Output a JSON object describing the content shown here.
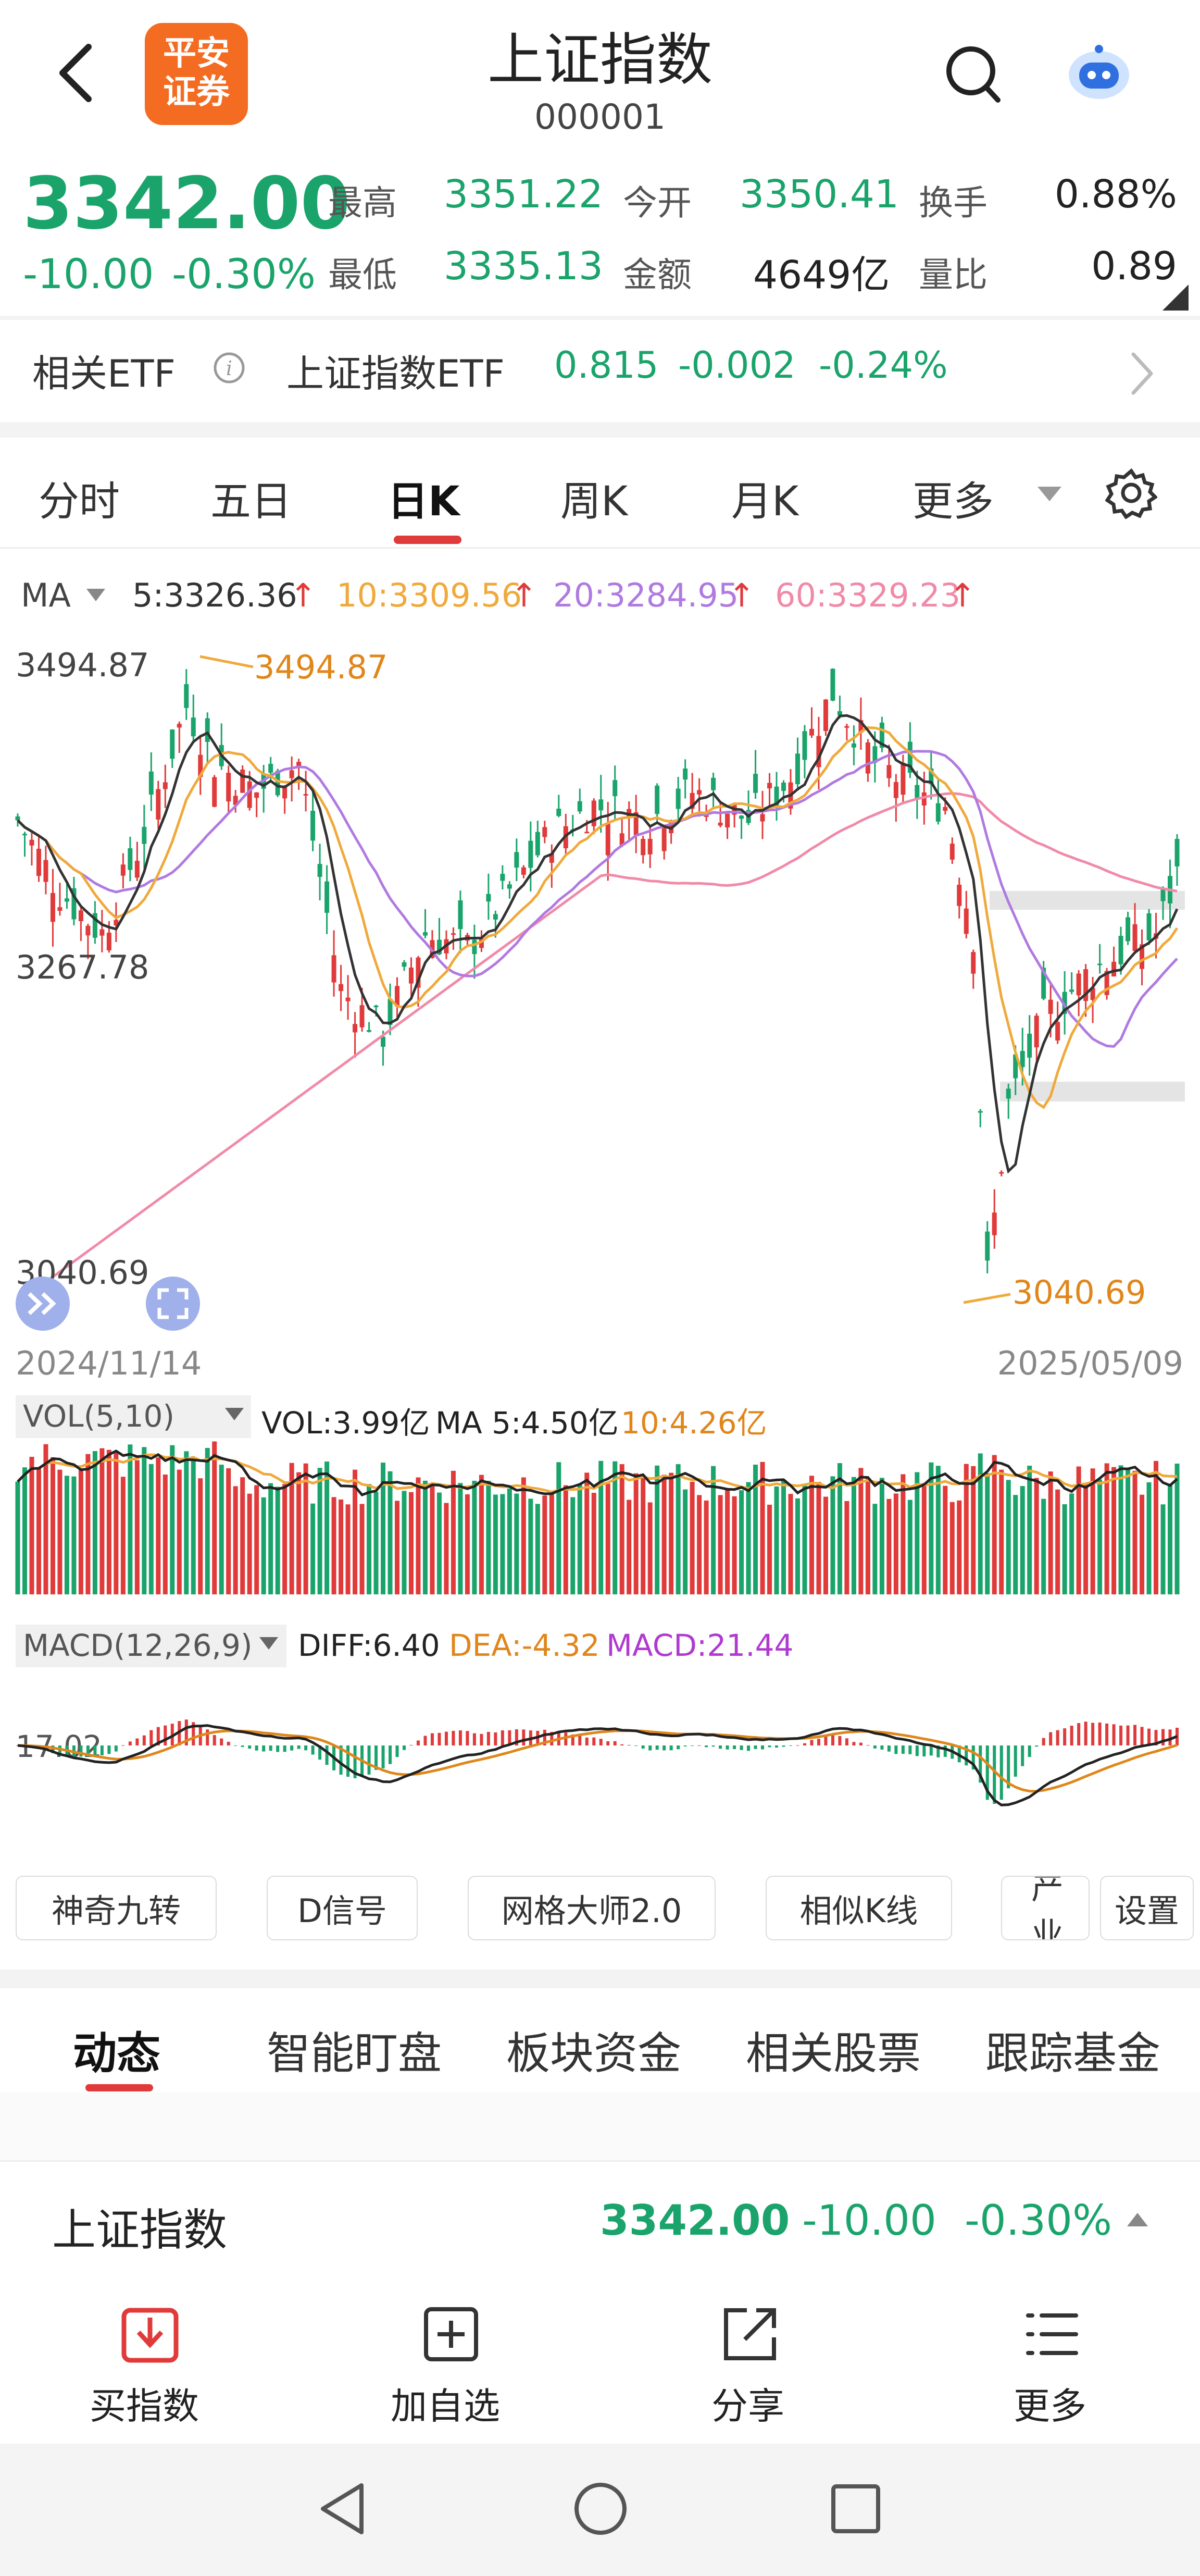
{
  "header": {
    "title": "上证指数",
    "code": "000001",
    "logo_line1": "平安",
    "logo_line2": "证券"
  },
  "quote": {
    "price": "3342.00",
    "change": "-10.00",
    "change_pct": "-0.30%",
    "stats": [
      {
        "label": "最高",
        "value": "3351.22"
      },
      {
        "label": "今开",
        "value": "3350.41"
      },
      {
        "label": "换手",
        "value": "0.88%"
      },
      {
        "label": "最低",
        "value": "3335.13"
      },
      {
        "label": "金额",
        "value": "4649亿"
      },
      {
        "label": "量比",
        "value": "0.89"
      }
    ]
  },
  "etf": {
    "label": "相关ETF",
    "name": "上证指数ETF",
    "price": "0.815",
    "change": "-0.002",
    "change_pct": "-0.24%"
  },
  "period_tabs": [
    "分时",
    "五日",
    "日K",
    "周K",
    "月K",
    "更多"
  ],
  "active_tab_index": 2,
  "ma_legend": {
    "label": "MA",
    "ma5": "5:3326.36",
    "ma10": "10:3309.56",
    "ma20": "20:3284.95",
    "ma60": "60:3329.23",
    "colors": {
      "ma5": "#333333",
      "ma10": "#f0a93b",
      "ma20": "#b07ae0",
      "ma60": "#f08aa8"
    }
  },
  "kline": {
    "y_top_label": "3494.87",
    "y_mid_label": "3267.78",
    "y_bottom_label": "3040.69",
    "high_marker": "3494.87",
    "low_marker": "3040.69",
    "date_start": "2024/11/14",
    "date_end": "2025/05/09"
  },
  "volume": {
    "label": "VOL(5,10)",
    "vol": "VOL:3.99亿",
    "ma5": "MA 5:4.50亿",
    "ma10": "10:4.26亿"
  },
  "macd": {
    "label": "MACD(12,26,9)",
    "diff": "DIFF:6.40",
    "dea": "DEA:-4.32",
    "macd": "MACD:21.44",
    "axis_label": "17.02",
    "colors": {
      "diff": "#222222",
      "dea": "#e0861a",
      "macd": "#b03ad0"
    }
  },
  "tools": [
    "神奇九转",
    "D信号",
    "网格大师2.0",
    "相似K线",
    "产业",
    "设置"
  ],
  "content_tabs": [
    "动态",
    "智能盯盘",
    "板块资金",
    "相关股票",
    "跟踪基金"
  ],
  "active_content_tab": 0,
  "footer_quote": {
    "name": "上证指数",
    "price": "3342.00",
    "change": "-10.00",
    "change_pct": "-0.30%"
  },
  "bottom_nav": [
    {
      "label": "买指数",
      "icon": "download-icon"
    },
    {
      "label": "加自选",
      "icon": "add-icon"
    },
    {
      "label": "分享",
      "icon": "share-icon"
    },
    {
      "label": "更多",
      "icon": "menu-icon"
    }
  ],
  "brand_colors": {
    "up": "#e03a3a",
    "down": "#1aa46b",
    "logo": "#f36c21",
    "accent": "#e03a3a"
  }
}
